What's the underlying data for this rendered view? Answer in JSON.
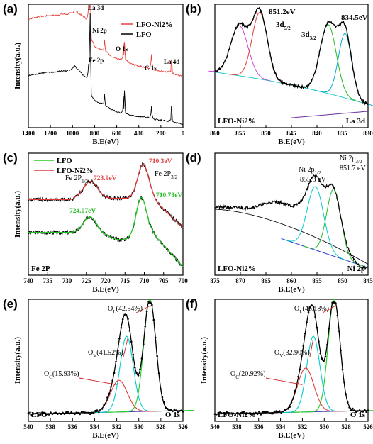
{
  "chart_data": [
    {
      "panel": "(a)",
      "type": "line",
      "xlabel": "B.E(eV)",
      "ylabel": "Intensity(a.u.)",
      "xlim": [
        1400,
        0
      ],
      "xticks": [
        1400,
        1200,
        1000,
        800,
        600,
        400,
        200,
        0
      ],
      "series": [
        {
          "name": "LFO-Ni2%",
          "color": "#e8403a",
          "x": [
            1400,
            1300,
            1200,
            1150,
            1100,
            1050,
            1000,
            980,
            950,
            900,
            870,
            850,
            840,
            835,
            830,
            800,
            780,
            720,
            710,
            700,
            650,
            600,
            560,
            535,
            530,
            520,
            480,
            400,
            300,
            285,
            270,
            200,
            140,
            110,
            102,
            100,
            60,
            20,
            0
          ],
          "y": [
            0.88,
            0.9,
            0.91,
            0.91,
            0.92,
            0.92,
            0.93,
            0.95,
            0.93,
            0.9,
            0.88,
            0.95,
            1.0,
            0.9,
            0.72,
            0.66,
            0.65,
            0.63,
            0.68,
            0.62,
            0.58,
            0.56,
            0.55,
            0.57,
            0.69,
            0.55,
            0.52,
            0.5,
            0.48,
            0.55,
            0.47,
            0.46,
            0.45,
            0.46,
            0.52,
            0.44,
            0.43,
            0.42,
            0.41
          ]
        },
        {
          "name": "LFO",
          "color": "#000000",
          "x": [
            1400,
            1300,
            1200,
            1150,
            1100,
            1050,
            1000,
            980,
            950,
            900,
            870,
            850,
            840,
            835,
            830,
            800,
            780,
            720,
            710,
            700,
            650,
            600,
            560,
            535,
            530,
            520,
            480,
            400,
            300,
            285,
            270,
            200,
            140,
            110,
            102,
            100,
            60,
            20,
            0
          ],
          "y": [
            0.42,
            0.44,
            0.45,
            0.45,
            0.46,
            0.46,
            0.48,
            0.5,
            0.47,
            0.42,
            0.4,
            0.48,
            0.92,
            0.45,
            0.26,
            0.22,
            0.21,
            0.19,
            0.23,
            0.18,
            0.15,
            0.13,
            0.12,
            0.14,
            0.3,
            0.12,
            0.1,
            0.09,
            0.08,
            0.12,
            0.07,
            0.06,
            0.05,
            0.06,
            0.14,
            0.05,
            0.04,
            0.03,
            0.02
          ]
        }
      ],
      "legend": [
        "LFO-Ni2%",
        "LFO"
      ],
      "annotations": [
        "La 3d",
        "Ni 2p",
        "Fe 2p",
        "O 1s",
        "C 1s",
        "La 4d"
      ]
    },
    {
      "panel": "(b)",
      "type": "line",
      "xlabel": "B.E(eV)",
      "xlim": [
        860,
        830
      ],
      "xticks": [
        860,
        855,
        850,
        845,
        840,
        835,
        830
      ],
      "corner_left": "LFO-Ni2%",
      "corner_right": "La 3d",
      "annotations": [
        "851.2eV",
        "3d5/2",
        "3d3/2",
        "834.5eV"
      ],
      "peaks": [
        {
          "center": 855.2,
          "height": 0.45,
          "width": 1.7,
          "color": "#cc44cc"
        },
        {
          "center": 851.2,
          "height": 0.6,
          "width": 1.5,
          "color": "#e03a3a"
        },
        {
          "center": 837.8,
          "height": 0.62,
          "width": 1.6,
          "color": "#22bb22"
        },
        {
          "center": 834.5,
          "height": 0.58,
          "width": 1.3,
          "color": "#00aacc"
        }
      ],
      "background_color": "#22cccc"
    },
    {
      "panel": "(c)",
      "type": "line",
      "xlabel": "B.E(eV)",
      "ylabel": "Intensity(a.u.)",
      "xlim": [
        740,
        700
      ],
      "xticks": [
        740,
        735,
        730,
        725,
        720,
        715,
        710,
        705,
        700
      ],
      "corner_left": "Fe 2P",
      "legend": [
        "LFO",
        "LFO-Ni2%"
      ],
      "series": [
        {
          "name": "LFO",
          "color": "#22cc22",
          "peaks": [
            724.07,
            710.78
          ]
        },
        {
          "name": "LFO-Ni2%",
          "color": "#e03a3a",
          "peaks": [
            723.9,
            710.3
          ]
        }
      ],
      "annotations": [
        "Fe 2P1/2",
        "723.9eV",
        "710.3eV",
        "Fe 2P3/2",
        "724.07eV",
        "710.78eV"
      ]
    },
    {
      "panel": "(d)",
      "type": "line",
      "xlabel": "B.E(eV)",
      "xlim": [
        875,
        845
      ],
      "xticks": [
        875,
        870,
        865,
        860,
        855,
        850,
        845
      ],
      "corner_left": "LFO-Ni2%",
      "corner_right": "Ni 2p",
      "annotations": [
        "Ni 2p1/2",
        "855.3 eV",
        "Ni 2p3/2",
        "851.7 eV"
      ],
      "peaks": [
        {
          "center": 855.3,
          "height": 0.52,
          "width": 1.6,
          "color": "#00cccc"
        },
        {
          "center": 851.7,
          "height": 0.55,
          "width": 1.4,
          "color": "#22bb22"
        }
      ]
    },
    {
      "panel": "(e)",
      "type": "line",
      "xlabel": "B.E(eV)",
      "ylabel": "Intensity(a.u.)",
      "xlim": [
        540,
        526
      ],
      "xticks": [
        540,
        538,
        536,
        534,
        532,
        530,
        528,
        526
      ],
      "corner_left": "LFO",
      "corner_right": "O 1s",
      "components": [
        {
          "label": "OL(42.54%)",
          "center": 529.0,
          "height": 0.92,
          "width": 0.55,
          "color": "#22cc22"
        },
        {
          "label": "OV(41.52%)",
          "center": 531.1,
          "height": 0.62,
          "width": 0.6,
          "color": "#00cccc"
        },
        {
          "label": "OC(15.93%)",
          "center": 531.8,
          "height": 0.26,
          "width": 0.75,
          "color": "#e03a3a"
        }
      ]
    },
    {
      "panel": "(f)",
      "type": "line",
      "xlabel": "B.E(eV)",
      "ylabel": "Intensity(a.u.)",
      "xlim": [
        540,
        526
      ],
      "xticks": [
        540,
        538,
        536,
        534,
        532,
        530,
        528,
        526
      ],
      "corner_left": "LFO-Ni2%",
      "corner_right": "O 1s",
      "components": [
        {
          "label": "OL(46.18%)",
          "center": 529.1,
          "height": 0.92,
          "width": 0.55,
          "color": "#22cc22"
        },
        {
          "label": "OV(32.90%)",
          "center": 531.0,
          "height": 0.62,
          "width": 0.6,
          "color": "#00cccc"
        },
        {
          "label": "OC(20.92%)",
          "center": 531.7,
          "height": 0.36,
          "width": 0.75,
          "color": "#e03a3a"
        }
      ]
    }
  ]
}
